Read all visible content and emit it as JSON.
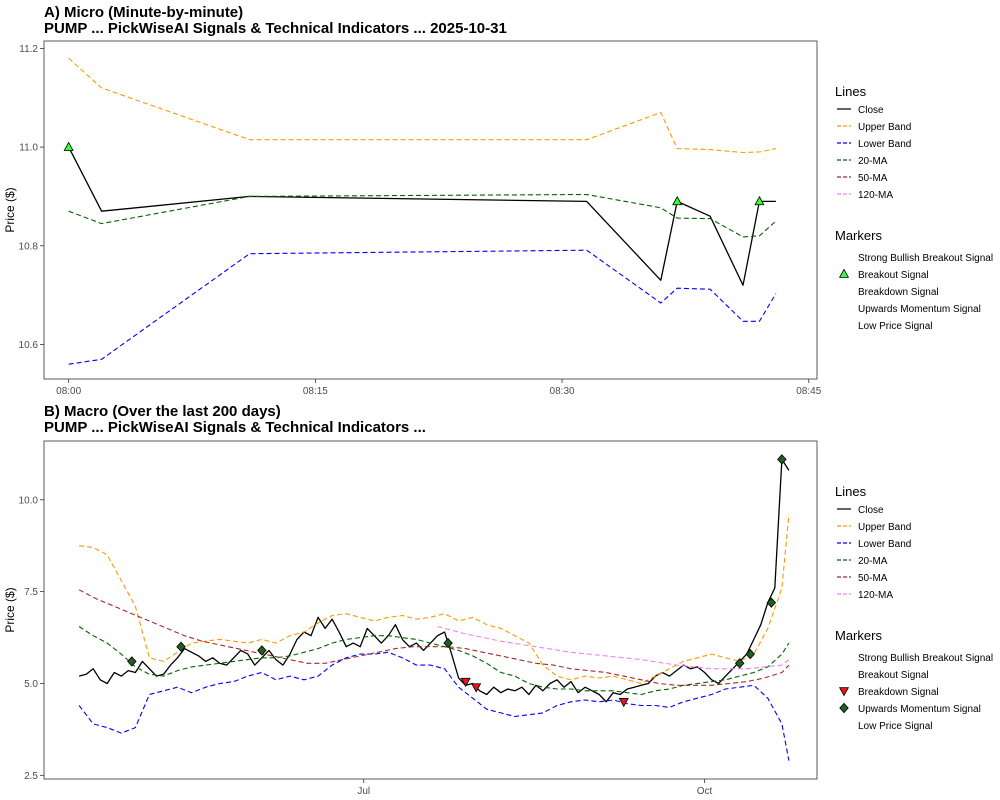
{
  "chart_data": [
    {
      "type": "line",
      "title": "A) Micro (Minute-by-minute)",
      "subtitle": "PUMP ... PickWiseAI Signals & Technical Indicators ... 2025-10-31",
      "ylabel": "Price ($)",
      "xlim": [
        -1.5,
        45.5
      ],
      "ylim": [
        10.53,
        11.215
      ],
      "x_ticks": [
        0,
        15,
        30,
        45
      ],
      "x_tick_labels": [
        "08:00",
        "08:15",
        "08:30",
        "08:45"
      ],
      "y_ticks": [
        10.6,
        10.8,
        11.0,
        11.2
      ],
      "y_tick_labels": [
        "10.6",
        "10.8",
        "11.0",
        "11.2"
      ],
      "series": [
        {
          "name": "Close",
          "color": "#000000",
          "dash": "solid",
          "x": [
            0,
            2,
            11,
            31.5,
            36,
            37,
            39,
            41,
            42,
            43
          ],
          "y": [
            11.0,
            10.87,
            10.9,
            10.89,
            10.73,
            10.89,
            10.86,
            10.72,
            10.89,
            10.89
          ]
        },
        {
          "name": "Upper Band",
          "color": "#ff9900",
          "dash": "dashed",
          "x": [
            0,
            2,
            11,
            31.5,
            36,
            37,
            39,
            41,
            42,
            43
          ],
          "y": [
            11.18,
            11.12,
            11.015,
            11.015,
            11.07,
            10.997,
            10.995,
            10.989,
            10.99,
            10.997
          ]
        },
        {
          "name": "Lower Band",
          "color": "#0000ff",
          "dash": "dashed",
          "x": [
            0,
            2,
            11,
            31.5,
            36,
            37,
            39,
            41,
            42,
            43
          ],
          "y": [
            10.56,
            10.57,
            10.784,
            10.791,
            10.684,
            10.714,
            10.712,
            10.647,
            10.647,
            10.703
          ]
        },
        {
          "name": "20-MA",
          "color": "#006400",
          "dash": "dashed",
          "x": [
            0,
            2,
            11,
            31.5,
            36,
            37,
            39,
            41,
            42,
            43
          ],
          "y": [
            10.87,
            10.845,
            10.9,
            10.904,
            10.877,
            10.856,
            10.855,
            10.818,
            10.82,
            10.85
          ]
        }
      ],
      "markers": [
        {
          "signal": "Breakout Signal",
          "x": [
            0,
            37,
            42
          ],
          "y": [
            11.0,
            10.89,
            10.89
          ]
        }
      ],
      "legend_lines_title": "Lines",
      "legend_lines": [
        "Close",
        "Upper Band",
        "Lower Band",
        "20-MA",
        "50-MA",
        "120-MA"
      ],
      "legend_markers_title": "Markers",
      "legend_markers": [
        "Strong Bullish Breakout Signal",
        "Breakout Signal",
        "Breakdown Signal",
        "Upwards Momentum Signal",
        "Low Price Signal"
      ],
      "legend_placement": "right",
      "grid": false
    },
    {
      "type": "line",
      "title": "B) Macro (Over the last 200 days)",
      "subtitle": "PUMP ... PickWiseAI Signals & Technical Indicators ...",
      "ylabel": "Price ($)",
      "xlim": [
        -10,
        210
      ],
      "ylim": [
        2.4,
        11.6
      ],
      "x_ticks": [
        81,
        178
      ],
      "x_tick_labels": [
        "Jul",
        "Oct"
      ],
      "y_ticks": [
        2.5,
        5.0,
        7.5,
        10.0
      ],
      "y_tick_labels": [
        "2.5",
        "5.0",
        "7.5",
        "10.0"
      ],
      "series": [
        {
          "name": "Close",
          "color": "#000000",
          "dash": "solid",
          "x": [
            0,
            2,
            4,
            6,
            8,
            10,
            12,
            14,
            16,
            18,
            20,
            22,
            24,
            26,
            28,
            30,
            32,
            34,
            36,
            38,
            40,
            42,
            44,
            46,
            48,
            50,
            52,
            54,
            56,
            58,
            60,
            62,
            64,
            66,
            68,
            70,
            72,
            74,
            76,
            78,
            80,
            82,
            84,
            86,
            88,
            90,
            92,
            94,
            96,
            98,
            100,
            102,
            104,
            106,
            108,
            110,
            112,
            114,
            116,
            118,
            120,
            122,
            124,
            126,
            128,
            130,
            132,
            134,
            136,
            138,
            140,
            142,
            144,
            146,
            148,
            150,
            152,
            154,
            156,
            158,
            160,
            162,
            164,
            166,
            168,
            170,
            172,
            174,
            176,
            178,
            180,
            182,
            184,
            186,
            188,
            190,
            192,
            194,
            196,
            198,
            200,
            202
          ],
          "y": [
            5.2,
            5.25,
            5.4,
            5.1,
            5.0,
            5.3,
            5.2,
            5.35,
            5.3,
            5.6,
            5.4,
            5.2,
            5.25,
            5.5,
            5.7,
            5.95,
            5.85,
            5.75,
            5.6,
            5.7,
            5.55,
            5.5,
            5.7,
            5.9,
            5.8,
            5.5,
            5.7,
            5.9,
            5.65,
            5.5,
            5.8,
            6.2,
            6.4,
            6.3,
            6.8,
            6.5,
            6.75,
            6.4,
            6.0,
            6.1,
            6.0,
            6.5,
            6.3,
            6.1,
            6.3,
            6.6,
            6.2,
            6.0,
            6.1,
            5.9,
            6.1,
            6.3,
            6.4,
            5.8,
            5.15,
            4.95,
            5.0,
            4.8,
            4.7,
            4.9,
            4.75,
            4.85,
            4.8,
            4.9,
            4.7,
            4.95,
            4.8,
            5.0,
            5.1,
            4.9,
            5.05,
            4.75,
            4.9,
            4.8,
            4.7,
            4.5,
            4.75,
            4.7,
            4.85,
            4.9,
            4.95,
            5.0,
            5.2,
            5.3,
            5.2,
            5.35,
            5.5,
            5.4,
            5.45,
            5.3,
            5.1,
            5.0,
            5.2,
            5.4,
            5.6,
            5.8,
            6.2,
            6.6,
            7.2,
            7.6,
            11.1,
            10.8
          ]
        },
        {
          "name": "Upper Band",
          "color": "#ff9900",
          "dash": "dashed",
          "x": [
            0,
            4,
            8,
            12,
            16,
            20,
            24,
            28,
            32,
            36,
            40,
            44,
            48,
            52,
            56,
            60,
            64,
            68,
            72,
            76,
            80,
            84,
            88,
            92,
            96,
            100,
            104,
            108,
            112,
            116,
            120,
            124,
            128,
            132,
            136,
            140,
            144,
            148,
            152,
            156,
            160,
            164,
            168,
            172,
            176,
            180,
            184,
            188,
            192,
            196,
            200,
            202
          ],
          "y": [
            8.75,
            8.7,
            8.5,
            7.8,
            7.1,
            5.7,
            5.6,
            5.85,
            6.1,
            6.15,
            6.2,
            6.15,
            6.1,
            6.2,
            6.1,
            6.3,
            6.4,
            6.65,
            6.85,
            6.9,
            6.8,
            6.7,
            6.8,
            6.85,
            6.75,
            6.8,
            6.9,
            6.7,
            6.8,
            6.6,
            6.5,
            6.3,
            6.1,
            5.5,
            5.2,
            5.1,
            5.2,
            5.15,
            5.2,
            5.1,
            5.0,
            5.2,
            5.4,
            5.6,
            5.7,
            5.8,
            5.7,
            5.6,
            5.8,
            6.5,
            7.6,
            9.6
          ]
        },
        {
          "name": "Lower Band",
          "color": "#0000ff",
          "dash": "dashed",
          "x": [
            0,
            4,
            8,
            12,
            16,
            20,
            24,
            28,
            32,
            36,
            40,
            44,
            48,
            52,
            56,
            60,
            64,
            68,
            72,
            76,
            80,
            84,
            88,
            92,
            96,
            100,
            104,
            108,
            112,
            116,
            120,
            124,
            128,
            132,
            136,
            140,
            144,
            148,
            152,
            156,
            160,
            164,
            168,
            172,
            176,
            180,
            184,
            188,
            192,
            196,
            200,
            202
          ],
          "y": [
            4.4,
            3.9,
            3.8,
            3.65,
            3.8,
            4.7,
            4.8,
            4.9,
            4.75,
            4.9,
            5.0,
            5.05,
            5.2,
            5.3,
            5.1,
            5.2,
            5.1,
            5.2,
            5.5,
            5.7,
            5.8,
            5.8,
            5.85,
            5.7,
            5.5,
            5.5,
            5.4,
            4.9,
            4.6,
            4.3,
            4.2,
            4.1,
            4.15,
            4.2,
            4.4,
            4.5,
            4.55,
            4.5,
            4.55,
            4.45,
            4.4,
            4.4,
            4.35,
            4.5,
            4.6,
            4.7,
            4.85,
            4.9,
            4.95,
            4.6,
            3.9,
            2.9
          ]
        },
        {
          "name": "20-MA",
          "color": "#006400",
          "dash": "dashed",
          "x": [
            0,
            4,
            8,
            12,
            16,
            20,
            24,
            28,
            32,
            36,
            40,
            44,
            48,
            52,
            56,
            60,
            64,
            68,
            72,
            76,
            80,
            84,
            88,
            92,
            96,
            100,
            104,
            108,
            112,
            116,
            120,
            124,
            128,
            132,
            136,
            140,
            144,
            148,
            152,
            156,
            160,
            164,
            168,
            172,
            176,
            180,
            184,
            188,
            192,
            196,
            200,
            202
          ],
          "y": [
            6.55,
            6.3,
            6.1,
            5.8,
            5.45,
            5.25,
            5.2,
            5.35,
            5.45,
            5.5,
            5.55,
            5.6,
            5.65,
            5.7,
            5.7,
            5.75,
            5.85,
            5.95,
            6.1,
            6.2,
            6.25,
            6.3,
            6.3,
            6.25,
            6.2,
            6.1,
            6.0,
            5.9,
            5.75,
            5.55,
            5.3,
            5.2,
            5.0,
            4.9,
            4.85,
            4.85,
            4.8,
            4.8,
            4.8,
            4.75,
            4.7,
            4.8,
            4.85,
            4.95,
            5.0,
            5.05,
            5.1,
            5.2,
            5.3,
            5.45,
            5.8,
            6.1
          ]
        },
        {
          "name": "50-MA",
          "color": "#a52a2a",
          "dash": "dashed",
          "x": [
            0,
            5,
            10,
            15,
            20,
            25,
            30,
            35,
            40,
            45,
            50,
            55,
            60,
            65,
            70,
            75,
            80,
            85,
            90,
            95,
            100,
            105,
            110,
            115,
            120,
            125,
            130,
            135,
            140,
            145,
            150,
            155,
            160,
            165,
            170,
            175,
            180,
            185,
            190,
            195,
            200,
            202
          ],
          "y": [
            7.55,
            7.3,
            7.1,
            6.9,
            6.7,
            6.5,
            6.3,
            6.15,
            6.05,
            5.95,
            5.85,
            5.75,
            5.65,
            5.55,
            5.55,
            5.65,
            5.75,
            5.85,
            5.95,
            6.0,
            6.0,
            6.0,
            5.95,
            5.85,
            5.75,
            5.65,
            5.55,
            5.5,
            5.4,
            5.35,
            5.3,
            5.2,
            5.1,
            5.0,
            4.95,
            4.95,
            4.95,
            5.0,
            5.05,
            5.15,
            5.3,
            5.5
          ]
        },
        {
          "name": "120-MA",
          "color": "#ee82ee",
          "dash": "dashed",
          "x": [
            102,
            110,
            120,
            130,
            140,
            150,
            160,
            170,
            180,
            190,
            200,
            202
          ],
          "y": [
            6.55,
            6.35,
            6.15,
            6.0,
            5.85,
            5.75,
            5.65,
            5.5,
            5.4,
            5.4,
            5.5,
            5.65
          ]
        }
      ],
      "markers": [
        {
          "signal": "Upwards Momentum Signal",
          "x": [
            15,
            29,
            52,
            105,
            188,
            191,
            197,
            200
          ],
          "y": [
            5.6,
            6.0,
            5.9,
            6.1,
            5.55,
            5.8,
            7.2,
            11.1
          ]
        },
        {
          "signal": "Breakdown Signal",
          "x": [
            110,
            113,
            155
          ],
          "y": [
            5.05,
            4.9,
            4.5
          ]
        }
      ],
      "legend_lines_title": "Lines",
      "legend_lines": [
        "Close",
        "Upper Band",
        "Lower Band",
        "20-MA",
        "50-MA",
        "120-MA"
      ],
      "legend_markers_title": "Markers",
      "legend_markers": [
        "Strong Bullish Breakout Signal",
        "Breakout Signal",
        "Breakdown Signal",
        "Upwards Momentum Signal",
        "Low Price Signal"
      ],
      "legend_placement": "right",
      "grid": false
    }
  ],
  "colors": {
    "Close": "#000000",
    "Upper Band": "#ff9900",
    "Lower Band": "#0000ff",
    "20-MA": "#006400",
    "50-MA": "#a52a2a",
    "120-MA": "#ee82ee",
    "Breakout Signal": "#33ff33",
    "Breakdown Signal": "#e8141e",
    "Upwards Momentum Signal": "#1f5f1f"
  }
}
